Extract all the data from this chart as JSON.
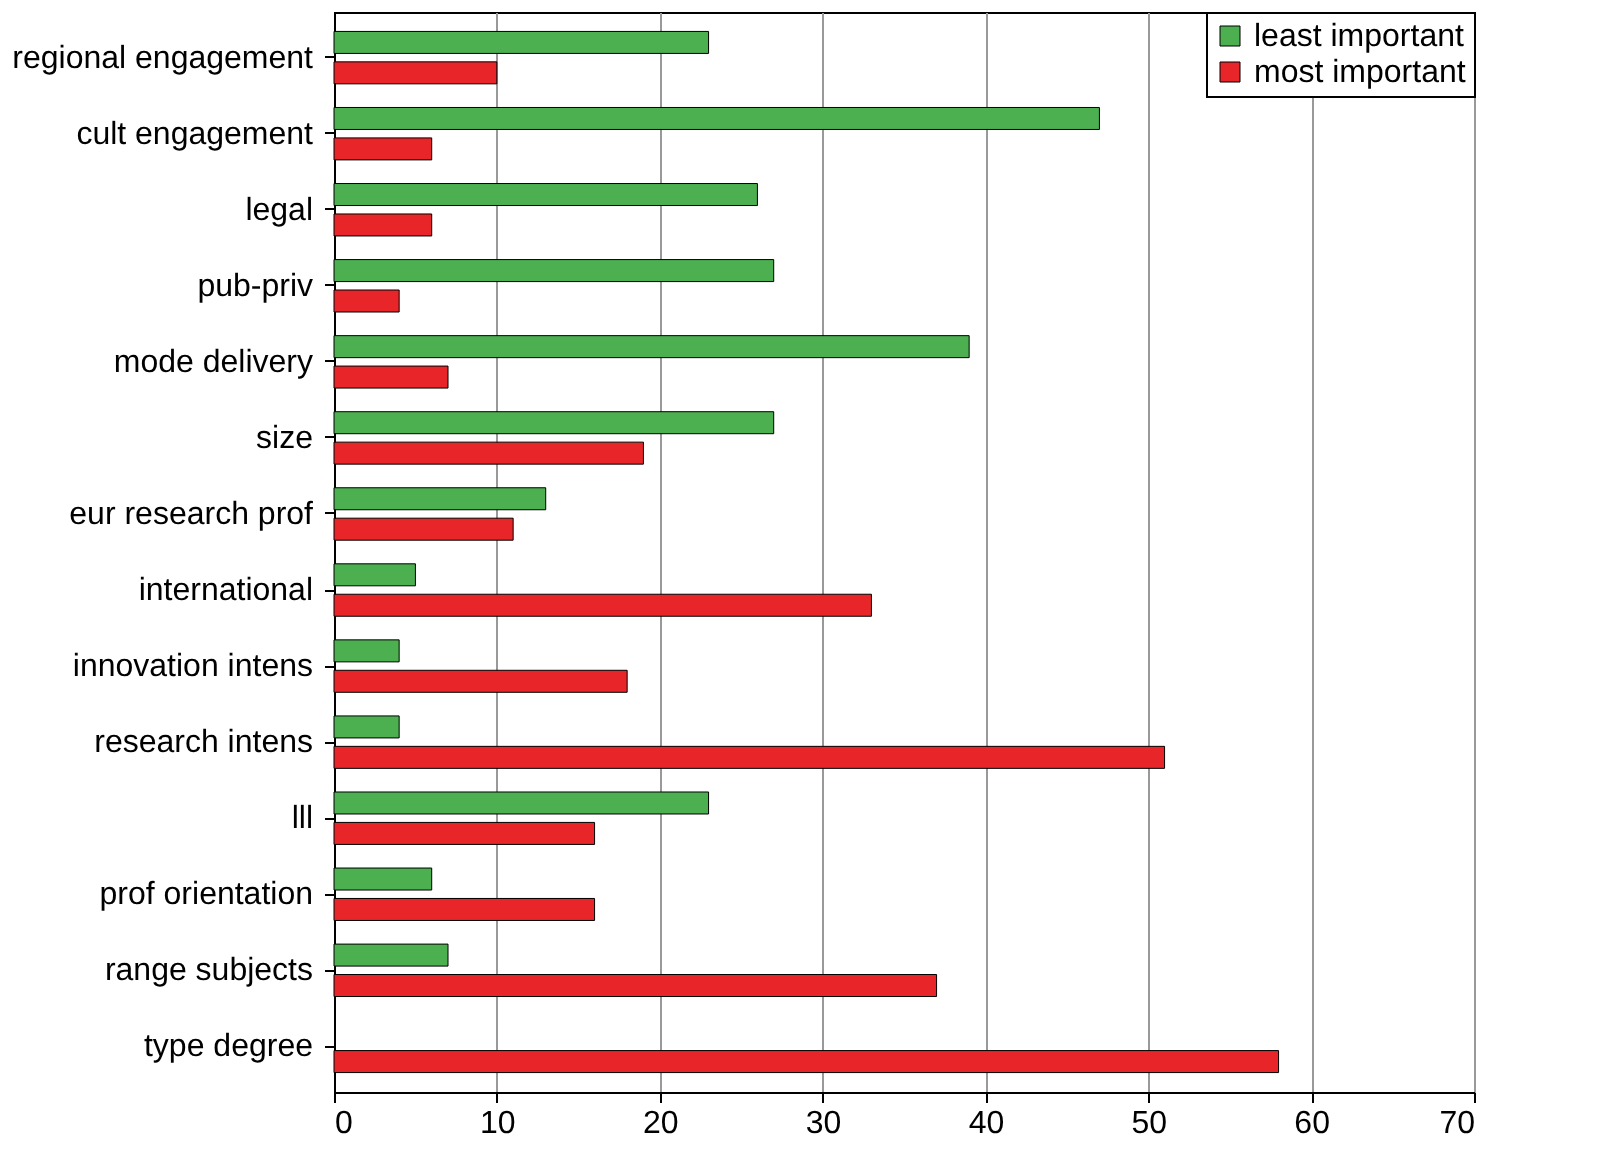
{
  "chart_data": {
    "type": "bar",
    "orientation": "horizontal",
    "categories": [
      "regional engagement",
      "cult engagement",
      "legal",
      "pub-priv",
      "mode delivery",
      "size",
      "eur research prof",
      "international",
      "innovation intens",
      "research intens",
      "lll",
      "prof orientation",
      "range subjects",
      "type degree"
    ],
    "series": [
      {
        "name": "least important",
        "color": "#4caf50",
        "values": [
          23,
          47,
          26,
          27,
          39,
          27,
          13,
          5,
          4,
          4,
          23,
          6,
          7,
          0
        ]
      },
      {
        "name": "most important",
        "color": "#e8262a",
        "values": [
          10,
          6,
          6,
          4,
          7,
          19,
          11,
          33,
          18,
          51,
          16,
          16,
          37,
          58
        ]
      }
    ],
    "xlim": [
      0,
      70
    ],
    "xticks": [
      0,
      10,
      20,
      30,
      40,
      50,
      60,
      70
    ],
    "grid": "x",
    "legend": "top right"
  }
}
